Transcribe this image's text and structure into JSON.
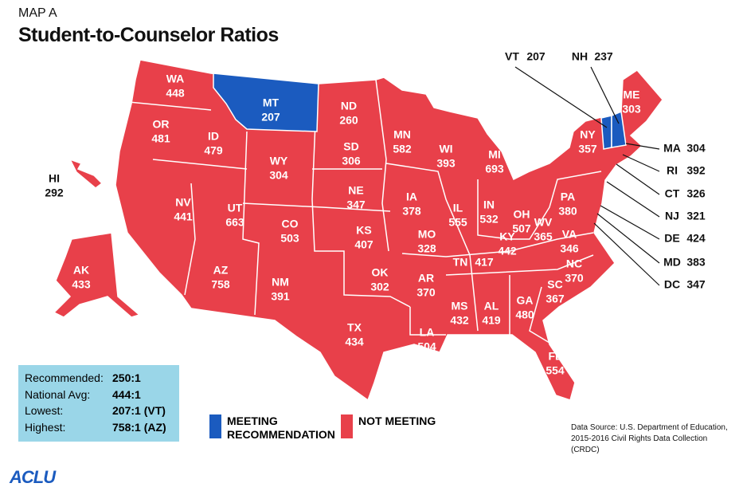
{
  "header": {
    "kicker": "MAP A",
    "title": "Student-to-Counselor Ratios"
  },
  "states": [
    {
      "abbr": "WA",
      "value": 448,
      "color": "#e8404a"
    },
    {
      "abbr": "OR",
      "value": 481,
      "color": "#e8404a"
    },
    {
      "abbr": "ID",
      "value": 479,
      "color": "#e8404a"
    },
    {
      "abbr": "MT",
      "value": 207,
      "color": "#1b5bbf"
    },
    {
      "abbr": "ND",
      "value": 260,
      "color": "#e8404a"
    },
    {
      "abbr": "SD",
      "value": 306,
      "color": "#e8404a"
    },
    {
      "abbr": "WY",
      "value": 304,
      "color": "#e8404a"
    },
    {
      "abbr": "NE",
      "value": 347,
      "color": "#e8404a"
    },
    {
      "abbr": "NV",
      "value": 441,
      "color": "#e8404a"
    },
    {
      "abbr": "UT",
      "value": 663,
      "color": "#e8404a"
    },
    {
      "abbr": "CO",
      "value": 503,
      "color": "#e8404a"
    },
    {
      "abbr": "KS",
      "value": 407,
      "color": "#e8404a"
    },
    {
      "abbr": "AZ",
      "value": 758,
      "color": "#e8404a"
    },
    {
      "abbr": "NM",
      "value": 391,
      "color": "#e8404a"
    },
    {
      "abbr": "OK",
      "value": 302,
      "color": "#e8404a"
    },
    {
      "abbr": "TX",
      "value": 434,
      "color": "#e8404a"
    },
    {
      "abbr": "MN",
      "value": 582,
      "color": "#e8404a"
    },
    {
      "abbr": "IA",
      "value": 378,
      "color": "#e8404a"
    },
    {
      "abbr": "MO",
      "value": 328,
      "color": "#e8404a"
    },
    {
      "abbr": "AR",
      "value": 370,
      "color": "#e8404a"
    },
    {
      "abbr": "LA",
      "value": 504,
      "color": "#e8404a"
    },
    {
      "abbr": "WI",
      "value": 393,
      "color": "#e8404a"
    },
    {
      "abbr": "IL",
      "value": 555,
      "color": "#e8404a"
    },
    {
      "abbr": "MI",
      "value": 693,
      "color": "#e8404a"
    },
    {
      "abbr": "IN",
      "value": 532,
      "color": "#e8404a"
    },
    {
      "abbr": "OH",
      "value": 507,
      "color": "#e8404a"
    },
    {
      "abbr": "KY",
      "value": 442,
      "color": "#e8404a"
    },
    {
      "abbr": "TN",
      "value": 417,
      "color": "#e8404a"
    },
    {
      "abbr": "MS",
      "value": 432,
      "color": "#e8404a"
    },
    {
      "abbr": "AL",
      "value": 419,
      "color": "#e8404a"
    },
    {
      "abbr": "GA",
      "value": 480,
      "color": "#e8404a"
    },
    {
      "abbr": "FL",
      "value": 554,
      "color": "#e8404a"
    },
    {
      "abbr": "SC",
      "value": 367,
      "color": "#e8404a"
    },
    {
      "abbr": "NC",
      "value": 370,
      "color": "#e8404a"
    },
    {
      "abbr": "VA",
      "value": 346,
      "color": "#e8404a"
    },
    {
      "abbr": "WV",
      "value": 365,
      "color": "#e8404a"
    },
    {
      "abbr": "PA",
      "value": 380,
      "color": "#e8404a"
    },
    {
      "abbr": "NY",
      "value": 357,
      "color": "#e8404a"
    },
    {
      "abbr": "ME",
      "value": 303,
      "color": "#e8404a"
    },
    {
      "abbr": "AK",
      "value": 433,
      "color": "#e8404a"
    },
    {
      "abbr": "HI",
      "value": 292,
      "color": "#e8404a"
    },
    {
      "abbr": "VT",
      "value": 207,
      "color": "#1b5bbf"
    },
    {
      "abbr": "NH",
      "value": 237,
      "color": "#1b5bbf"
    },
    {
      "abbr": "MA",
      "value": 304,
      "color": "#e8404a"
    },
    {
      "abbr": "RI",
      "value": 392,
      "color": "#e8404a"
    },
    {
      "abbr": "CT",
      "value": 326,
      "color": "#e8404a"
    },
    {
      "abbr": "NJ",
      "value": 321,
      "color": "#e8404a"
    },
    {
      "abbr": "DE",
      "value": 424,
      "color": "#e8404a"
    },
    {
      "abbr": "MD",
      "value": 383,
      "color": "#e8404a"
    },
    {
      "abbr": "DC",
      "value": 347,
      "color": "#e8404a"
    }
  ],
  "summary": [
    {
      "label": "Recommended:",
      "value": "250:1"
    },
    {
      "label": "National Avg:",
      "value": "444:1"
    },
    {
      "label": "Lowest:",
      "value": "207:1 (VT)"
    },
    {
      "label": "Highest:",
      "value": "758:1 (AZ)"
    }
  ],
  "legend": [
    {
      "label": "MEETING RECOMMENDATION",
      "color": "#1b5bbf"
    },
    {
      "label": "NOT MEETING",
      "color": "#e8404a"
    }
  ],
  "source": "Data Source: U.S. Department of Education, 2015-2016 Civil Rights Data Collection (CRDC)",
  "logo": "ACLU"
}
